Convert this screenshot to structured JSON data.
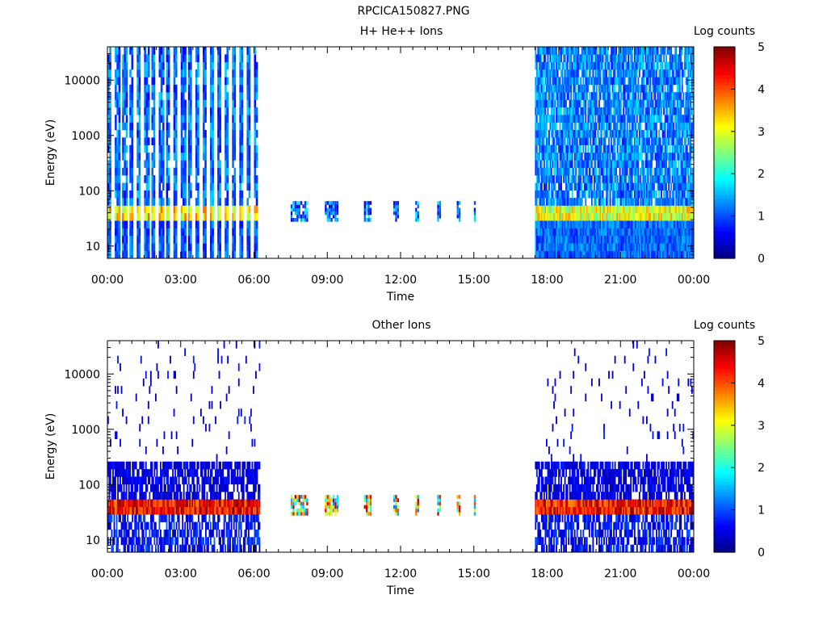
{
  "page_title": "RPCICA150827.PNG",
  "chart_data": [
    {
      "type": "heatmap",
      "title": "H+ He++ Ions",
      "xlabel": "Time",
      "ylabel": "Energy (eV)",
      "x_ticks": [
        "00:00",
        "03:00",
        "06:00",
        "09:00",
        "12:00",
        "15:00",
        "18:00",
        "21:00",
        "00:00"
      ],
      "x_range_hours": [
        0,
        24
      ],
      "y_scale": "log",
      "y_range": [
        6,
        40000
      ],
      "y_ticks": [
        "10",
        "100",
        "1000",
        "10000"
      ],
      "colorbar": {
        "label": "Log counts",
        "range": [
          0,
          5
        ],
        "ticks": [
          "0",
          "1",
          "2",
          "3",
          "4",
          "5"
        ]
      },
      "data_segments": [
        {
          "start_h": 0.0,
          "end_h": 6.2,
          "mode": "full sweep, striped",
          "band_eV": [
            28,
            60
          ],
          "band_level": 3.2,
          "background_level": 0.6
        },
        {
          "start_h": 7.5,
          "end_h": 15.0,
          "mode": "low-energy bursts",
          "band_eV": [
            28,
            65
          ],
          "band_level": 1.0
        },
        {
          "start_h": 17.5,
          "end_h": 24.0,
          "mode": "full sweep, dense",
          "band_eV": [
            28,
            60
          ],
          "band_level": 3.0,
          "background_level": 0.7
        }
      ]
    },
    {
      "type": "heatmap",
      "title": "Other Ions",
      "xlabel": "Time",
      "ylabel": "Energy (eV)",
      "x_ticks": [
        "00:00",
        "03:00",
        "06:00",
        "09:00",
        "12:00",
        "15:00",
        "18:00",
        "21:00",
        "00:00"
      ],
      "x_range_hours": [
        0,
        24
      ],
      "y_scale": "log",
      "y_range": [
        6,
        40000
      ],
      "y_ticks": [
        "10",
        "100",
        "1000",
        "10000"
      ],
      "colorbar": {
        "label": "Log counts",
        "range": [
          0,
          5
        ],
        "ticks": [
          "0",
          "1",
          "2",
          "3",
          "4",
          "5"
        ]
      },
      "data_segments": [
        {
          "start_h": 0.0,
          "end_h": 6.2,
          "mode": "full sweep, sparse",
          "band_eV": [
            30,
            60
          ],
          "band_level": 4.4,
          "background_level": 0.2
        },
        {
          "start_h": 7.5,
          "end_h": 15.0,
          "mode": "low-energy bursts",
          "band_eV": [
            28,
            65
          ],
          "band_level": 3.5
        },
        {
          "start_h": 17.5,
          "end_h": 24.0,
          "mode": "full sweep, sparse",
          "band_eV": [
            30,
            60
          ],
          "band_level": 4.3,
          "background_level": 0.2
        }
      ]
    }
  ]
}
